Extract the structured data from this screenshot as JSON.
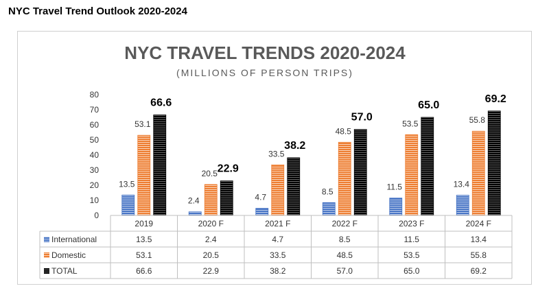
{
  "page": {
    "heading": "NYC Travel Trend Outlook 2020-2024"
  },
  "chart_data": {
    "type": "bar",
    "title": "NYC TRAVEL TRENDS 2020-2024",
    "subtitle": "(MILLIONS OF PERSON TRIPS)",
    "categories": [
      "2019",
      "2020 F",
      "2021 F",
      "2022 F",
      "2023 F",
      "2024 F"
    ],
    "series": [
      {
        "name": "International",
        "values": [
          13.5,
          2.4,
          4.7,
          8.5,
          11.5,
          13.4
        ],
        "color": "#4472c4"
      },
      {
        "name": "Domestic",
        "values": [
          53.1,
          20.5,
          33.5,
          48.5,
          53.5,
          55.8
        ],
        "color": "#ed7d31"
      },
      {
        "name": "TOTAL",
        "values": [
          66.6,
          22.9,
          38.2,
          57.0,
          65.0,
          69.2
        ],
        "color": "#000000"
      }
    ],
    "ylim": [
      0,
      80
    ],
    "yticks": [
      0,
      10,
      20,
      30,
      40,
      50,
      60,
      70,
      80
    ],
    "data_labels": [
      [
        "13.5",
        "2.4",
        "4.7",
        "8.5",
        "11.5",
        "13.4"
      ],
      [
        "53.1",
        "20.5",
        "33.5",
        "48.5",
        "53.5",
        "55.8"
      ],
      [
        "66.6",
        "22.9",
        "38.2",
        "57.0",
        "65.0",
        "69.2"
      ]
    ],
    "table_rows": [
      {
        "label": "International",
        "values": [
          "13.5",
          "2.4",
          "4.7",
          "8.5",
          "11.5",
          "13.4"
        ]
      },
      {
        "label": "Domestic",
        "values": [
          "53.1",
          "20.5",
          "33.5",
          "48.5",
          "53.5",
          "55.8"
        ]
      },
      {
        "label": "TOTAL",
        "values": [
          "66.6",
          "22.9",
          "38.2",
          "57.0",
          "65.0",
          "69.2"
        ]
      }
    ],
    "grid": false,
    "legend": "data-table"
  }
}
